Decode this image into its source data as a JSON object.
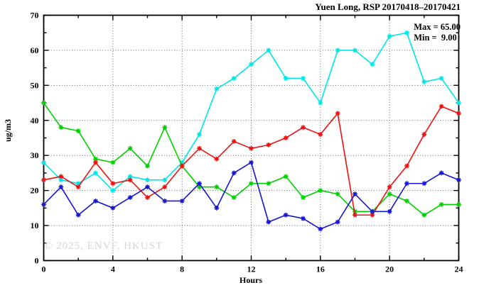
{
  "chart": {
    "title": "Yuen Long, RSP 20170418–20170421",
    "ylabel": "ug/m3",
    "xlabel": "Hours",
    "watermark": "© 2025, ENVF, HKUST",
    "annotations": {
      "max_label": "Max = 65.00",
      "min_label": "Min =  9.00"
    }
  },
  "chart_data": {
    "type": "line",
    "title": "Yuen Long, RSP 20170418–20170421",
    "xlabel": "Hours",
    "ylabel": "ug/m3",
    "xlim": [
      0,
      24
    ],
    "ylim": [
      0,
      70
    ],
    "xticks": [
      0,
      4,
      8,
      12,
      16,
      20,
      24
    ],
    "yticks": [
      0,
      10,
      20,
      30,
      40,
      50,
      60,
      70
    ],
    "grid": true,
    "legend": "none",
    "stat_max": 65.0,
    "stat_min": 9.0,
    "x": [
      0,
      1,
      2,
      3,
      4,
      5,
      6,
      7,
      8,
      9,
      10,
      11,
      12,
      13,
      14,
      15,
      16,
      17,
      18,
      19,
      20,
      21,
      22,
      23,
      24
    ],
    "series": [
      {
        "name": "cyan-series",
        "color": "#00e6e6",
        "values": [
          28,
          23,
          22,
          25,
          20,
          24,
          23,
          23,
          28,
          36,
          49,
          52,
          56,
          60,
          52,
          52,
          45,
          60,
          60,
          56,
          64,
          65,
          51,
          52,
          45
        ]
      },
      {
        "name": "green-series",
        "color": "#00cf00",
        "values": [
          45,
          38,
          37,
          29,
          28,
          32,
          27,
          38,
          27,
          21,
          21,
          18,
          22,
          22,
          24,
          18,
          20,
          19,
          14,
          14,
          19,
          17,
          13,
          16,
          16
        ]
      },
      {
        "name": "red-series",
        "color": "#ee1111",
        "values": [
          23,
          24,
          21,
          28,
          22,
          23,
          18,
          21,
          27,
          32,
          29,
          34,
          32,
          33,
          35,
          38,
          36,
          42,
          13,
          13,
          21,
          27,
          36,
          44,
          42
        ]
      },
      {
        "name": "blue-series",
        "color": "#1616d0",
        "values": [
          16,
          21,
          13,
          17,
          15,
          18,
          21,
          17,
          17,
          22,
          15,
          25,
          28,
          11,
          13,
          12,
          9,
          11,
          19,
          14,
          14,
          22,
          22,
          25,
          23
        ]
      }
    ],
    "style": {
      "grid_color": "#606060",
      "axis_color": "#000000",
      "marker": "asterisk"
    }
  }
}
